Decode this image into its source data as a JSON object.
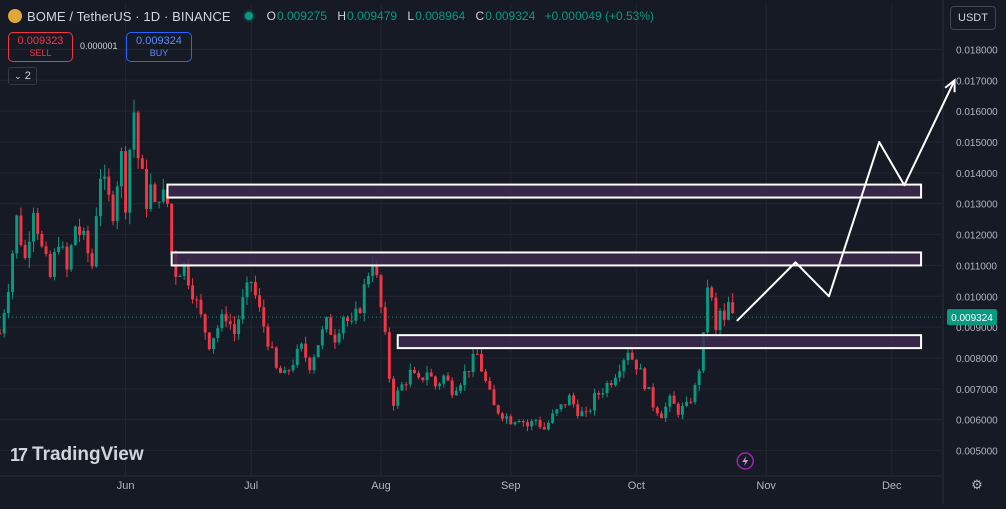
{
  "header": {
    "title": "BOME / TetherUS · 1D · BINANCE",
    "ohlc": [
      {
        "k": "O",
        "v": "0.009275"
      },
      {
        "k": "H",
        "v": "0.009479"
      },
      {
        "k": "L",
        "v": "0.008964"
      },
      {
        "k": "C",
        "v": "0.009324"
      }
    ],
    "change": "+0.000049 (+0.53%)"
  },
  "trade": {
    "sell_price": "0.009323",
    "sell_label": "SELL",
    "spread": "0.000001",
    "buy_price": "0.009324",
    "buy_label": "BUY"
  },
  "indicator_toggle": "2",
  "currency": "USDT",
  "brand": "TradingView",
  "colors": {
    "background": "#161a25",
    "up": "#089981",
    "down": "#f23645",
    "zone_fill": "#3c2a4d",
    "zone_border": "#ffffff",
    "arrow": "#ffffff",
    "grid": "#232632"
  },
  "chart_data": {
    "type": "candlestick",
    "title": "BOME / TetherUS · 1D · BINANCE",
    "y_ticks": [
      "0.018000",
      "0.017000",
      "0.016000",
      "0.015000",
      "0.014000",
      "0.013000",
      "0.012000",
      "0.011000",
      "0.010000",
      "0.009000",
      "0.008000",
      "0.007000",
      "0.006000",
      "0.005000"
    ],
    "x_ticks": [
      {
        "label": "Jun",
        "day": 0
      },
      {
        "label": "Jul",
        "day": 30
      },
      {
        "label": "Aug",
        "day": 61
      },
      {
        "label": "Sep",
        "day": 92
      },
      {
        "label": "Oct",
        "day": 122
      },
      {
        "label": "Nov",
        "day": 153
      },
      {
        "label": "Dec",
        "day": 183
      }
    ],
    "ylim": [
      0.0045,
      0.0185
    ],
    "xlim": [
      -30,
      195
    ],
    "current_price": {
      "label": "0.009324",
      "value": 0.009324
    },
    "close_path": [
      [
        -30,
        0.0088
      ],
      [
        -28,
        0.0104
      ],
      [
        -26,
        0.0125
      ],
      [
        -24,
        0.0112
      ],
      [
        -22,
        0.013
      ],
      [
        -20,
        0.0115
      ],
      [
        -18,
        0.0106
      ],
      [
        -16,
        0.0119
      ],
      [
        -14,
        0.0108
      ],
      [
        -12,
        0.0123
      ],
      [
        -10,
        0.0118
      ],
      [
        -8,
        0.011
      ],
      [
        -7,
        0.0128
      ],
      [
        -6,
        0.014
      ],
      [
        -5,
        0.0135
      ],
      [
        -4,
        0.0131
      ],
      [
        -3,
        0.0128
      ],
      [
        -2,
        0.0138
      ],
      [
        -1,
        0.0145
      ],
      [
        0,
        0.0131
      ],
      [
        1,
        0.0148
      ],
      [
        2,
        0.016
      ],
      [
        3,
        0.0145
      ],
      [
        4,
        0.0138
      ],
      [
        5,
        0.0131
      ],
      [
        6,
        0.0135
      ],
      [
        7,
        0.0128
      ],
      [
        8,
        0.0134
      ],
      [
        9,
        0.0132
      ],
      [
        10,
        0.013
      ],
      [
        11,
        0.0114
      ],
      [
        12,
        0.0108
      ],
      [
        14,
        0.011
      ],
      [
        16,
        0.0102
      ],
      [
        18,
        0.0093
      ],
      [
        20,
        0.0085
      ],
      [
        22,
        0.009
      ],
      [
        24,
        0.0094
      ],
      [
        26,
        0.0088
      ],
      [
        28,
        0.0098
      ],
      [
        30,
        0.0105
      ],
      [
        32,
        0.0095
      ],
      [
        34,
        0.0086
      ],
      [
        36,
        0.0076
      ],
      [
        38,
        0.0074
      ],
      [
        40,
        0.0079
      ],
      [
        42,
        0.0083
      ],
      [
        44,
        0.0078
      ],
      [
        46,
        0.0085
      ],
      [
        48,
        0.0091
      ],
      [
        50,
        0.0087
      ],
      [
        52,
        0.0094
      ],
      [
        54,
        0.009
      ],
      [
        56,
        0.0097
      ],
      [
        58,
        0.0108
      ],
      [
        59,
        0.0112
      ],
      [
        60,
        0.0105
      ],
      [
        61,
        0.0096
      ],
      [
        62,
        0.0086
      ],
      [
        63,
        0.0074
      ],
      [
        64,
        0.0066
      ],
      [
        66,
        0.0071
      ],
      [
        68,
        0.0075
      ],
      [
        70,
        0.0072
      ],
      [
        72,
        0.0076
      ],
      [
        74,
        0.0071
      ],
      [
        76,
        0.0074
      ],
      [
        78,
        0.007
      ],
      [
        80,
        0.0073
      ],
      [
        82,
        0.0077
      ],
      [
        84,
        0.0081
      ],
      [
        86,
        0.0072
      ],
      [
        88,
        0.0064
      ],
      [
        90,
        0.0062
      ],
      [
        92,
        0.006
      ],
      [
        94,
        0.0061
      ],
      [
        96,
        0.0058
      ],
      [
        98,
        0.006
      ],
      [
        100,
        0.0057
      ],
      [
        102,
        0.0061
      ],
      [
        104,
        0.0064
      ],
      [
        106,
        0.0067
      ],
      [
        108,
        0.0063
      ],
      [
        110,
        0.0061
      ],
      [
        112,
        0.0067
      ],
      [
        114,
        0.007
      ],
      [
        116,
        0.0073
      ],
      [
        118,
        0.0078
      ],
      [
        120,
        0.0083
      ],
      [
        121,
        0.008
      ],
      [
        122,
        0.0078
      ],
      [
        124,
        0.0072
      ],
      [
        126,
        0.0065
      ],
      [
        128,
        0.0062
      ],
      [
        130,
        0.0066
      ],
      [
        132,
        0.0063
      ],
      [
        134,
        0.0064
      ],
      [
        136,
        0.007
      ],
      [
        137,
        0.0077
      ],
      [
        138,
        0.0086
      ],
      [
        139,
        0.0104
      ],
      [
        140,
        0.0098
      ],
      [
        141,
        0.0088
      ],
      [
        142,
        0.0095
      ],
      [
        143,
        0.0091
      ],
      [
        144,
        0.0097
      ],
      [
        145,
        0.0093
      ]
    ],
    "zones": [
      {
        "name": "resistance-zone-upper",
        "from_day": 10,
        "to_day": 190,
        "y_low": 0.0132,
        "y_high": 0.01362
      },
      {
        "name": "resistance-zone-middle",
        "from_day": 11,
        "to_day": 190,
        "y_low": 0.011,
        "y_high": 0.01142
      },
      {
        "name": "support-zone",
        "from_day": 65,
        "to_day": 190,
        "y_low": 0.00832,
        "y_high": 0.00874
      }
    ],
    "projection": [
      [
        146,
        0.0092
      ],
      [
        160,
        0.0111
      ],
      [
        168,
        0.01
      ],
      [
        180,
        0.015
      ],
      [
        186,
        0.0136
      ],
      [
        198,
        0.017
      ]
    ]
  }
}
